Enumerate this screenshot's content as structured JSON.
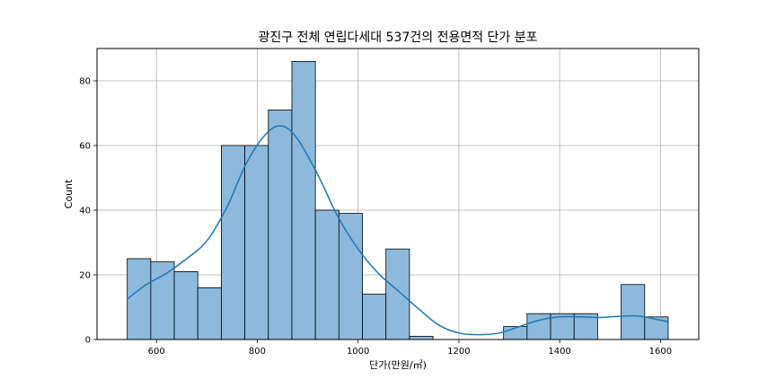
{
  "chart_data": {
    "type": "bar",
    "title": "광진구 전체 연립다세대 537건의 전용면적 단가 분포",
    "xlabel": "단가(만원/㎡)",
    "ylabel": "Count",
    "xlim": [
      482,
      1676
    ],
    "ylim": [
      0,
      90
    ],
    "xticks": [
      600,
      800,
      1000,
      1200,
      1400,
      1600
    ],
    "yticks": [
      0,
      20,
      40,
      60,
      80
    ],
    "grid": true,
    "bin_edges": [
      542,
      588.7,
      635.3,
      682,
      728.7,
      775.3,
      822,
      868.7,
      915.3,
      962,
      1008.7,
      1055.3,
      1102,
      1148.7,
      1195.3,
      1242,
      1288.7,
      1335.3,
      1382,
      1428.7,
      1475.3,
      1522,
      1568.7,
      1615.3
    ],
    "counts": [
      25,
      24,
      21,
      16,
      60,
      60,
      71,
      86,
      40,
      39,
      14,
      28,
      1,
      0,
      0,
      0,
      4,
      8,
      8,
      8,
      0,
      17,
      7
    ],
    "bar_color": "#8db9dc",
    "bar_edge": "#000000",
    "kde": {
      "color": "#1f77b4",
      "x": [
        542,
        580,
        620,
        660,
        700,
        740,
        780,
        820,
        850,
        880,
        920,
        960,
        1000,
        1040,
        1080,
        1120,
        1160,
        1200,
        1240,
        1280,
        1320,
        1360,
        1400,
        1440,
        1480,
        1520,
        1560,
        1615
      ],
      "y": [
        12.5,
        17,
        20.5,
        25,
        30.5,
        41,
        55,
        64,
        66,
        62,
        51,
        38,
        28,
        20.5,
        15,
        9.5,
        4.5,
        2,
        1.5,
        2,
        4,
        6,
        7,
        7,
        6.8,
        7.2,
        7.2,
        5.5
      ]
    }
  }
}
